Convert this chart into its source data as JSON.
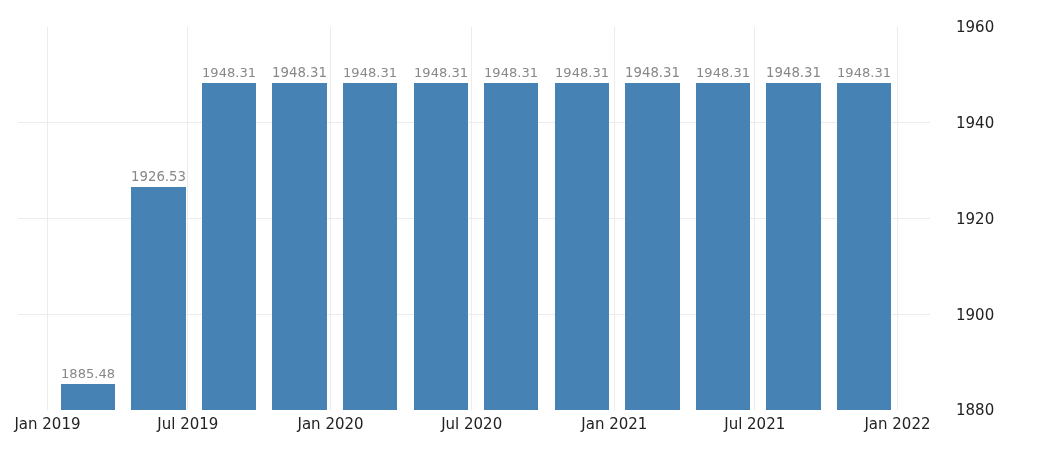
{
  "chart_data": {
    "type": "bar",
    "x": [
      "2019-02-22",
      "2019-05-24",
      "2019-08-23",
      "2019-11-22",
      "2020-02-21",
      "2020-05-22",
      "2020-08-21",
      "2020-11-20",
      "2021-02-19",
      "2021-05-21",
      "2021-08-20",
      "2021-11-19"
    ],
    "values": [
      1885.48,
      1926.53,
      1948.31,
      1948.31,
      1948.31,
      1948.31,
      1948.31,
      1948.31,
      1948.31,
      1948.31,
      1948.31,
      1948.31
    ],
    "color": "#4682b4",
    "data_labels": true,
    "xlim": [
      "2018-11-24",
      "2022-02-12"
    ],
    "xticks": [
      {
        "value": "2019-01-01",
        "label": "Jan 2019"
      },
      {
        "value": "2019-07-01",
        "label": "Jul 2019"
      },
      {
        "value": "2020-01-01",
        "label": "Jan 2020"
      },
      {
        "value": "2020-07-01",
        "label": "Jul 2020"
      },
      {
        "value": "2021-01-01",
        "label": "Jan 2021"
      },
      {
        "value": "2021-07-01",
        "label": "Jul 2021"
      },
      {
        "value": "2022-01-01",
        "label": "Jan 2022"
      }
    ],
    "ylim": [
      1880,
      1960
    ],
    "yticks": [
      1880,
      1900,
      1920,
      1940,
      1960
    ],
    "grid": true
  }
}
